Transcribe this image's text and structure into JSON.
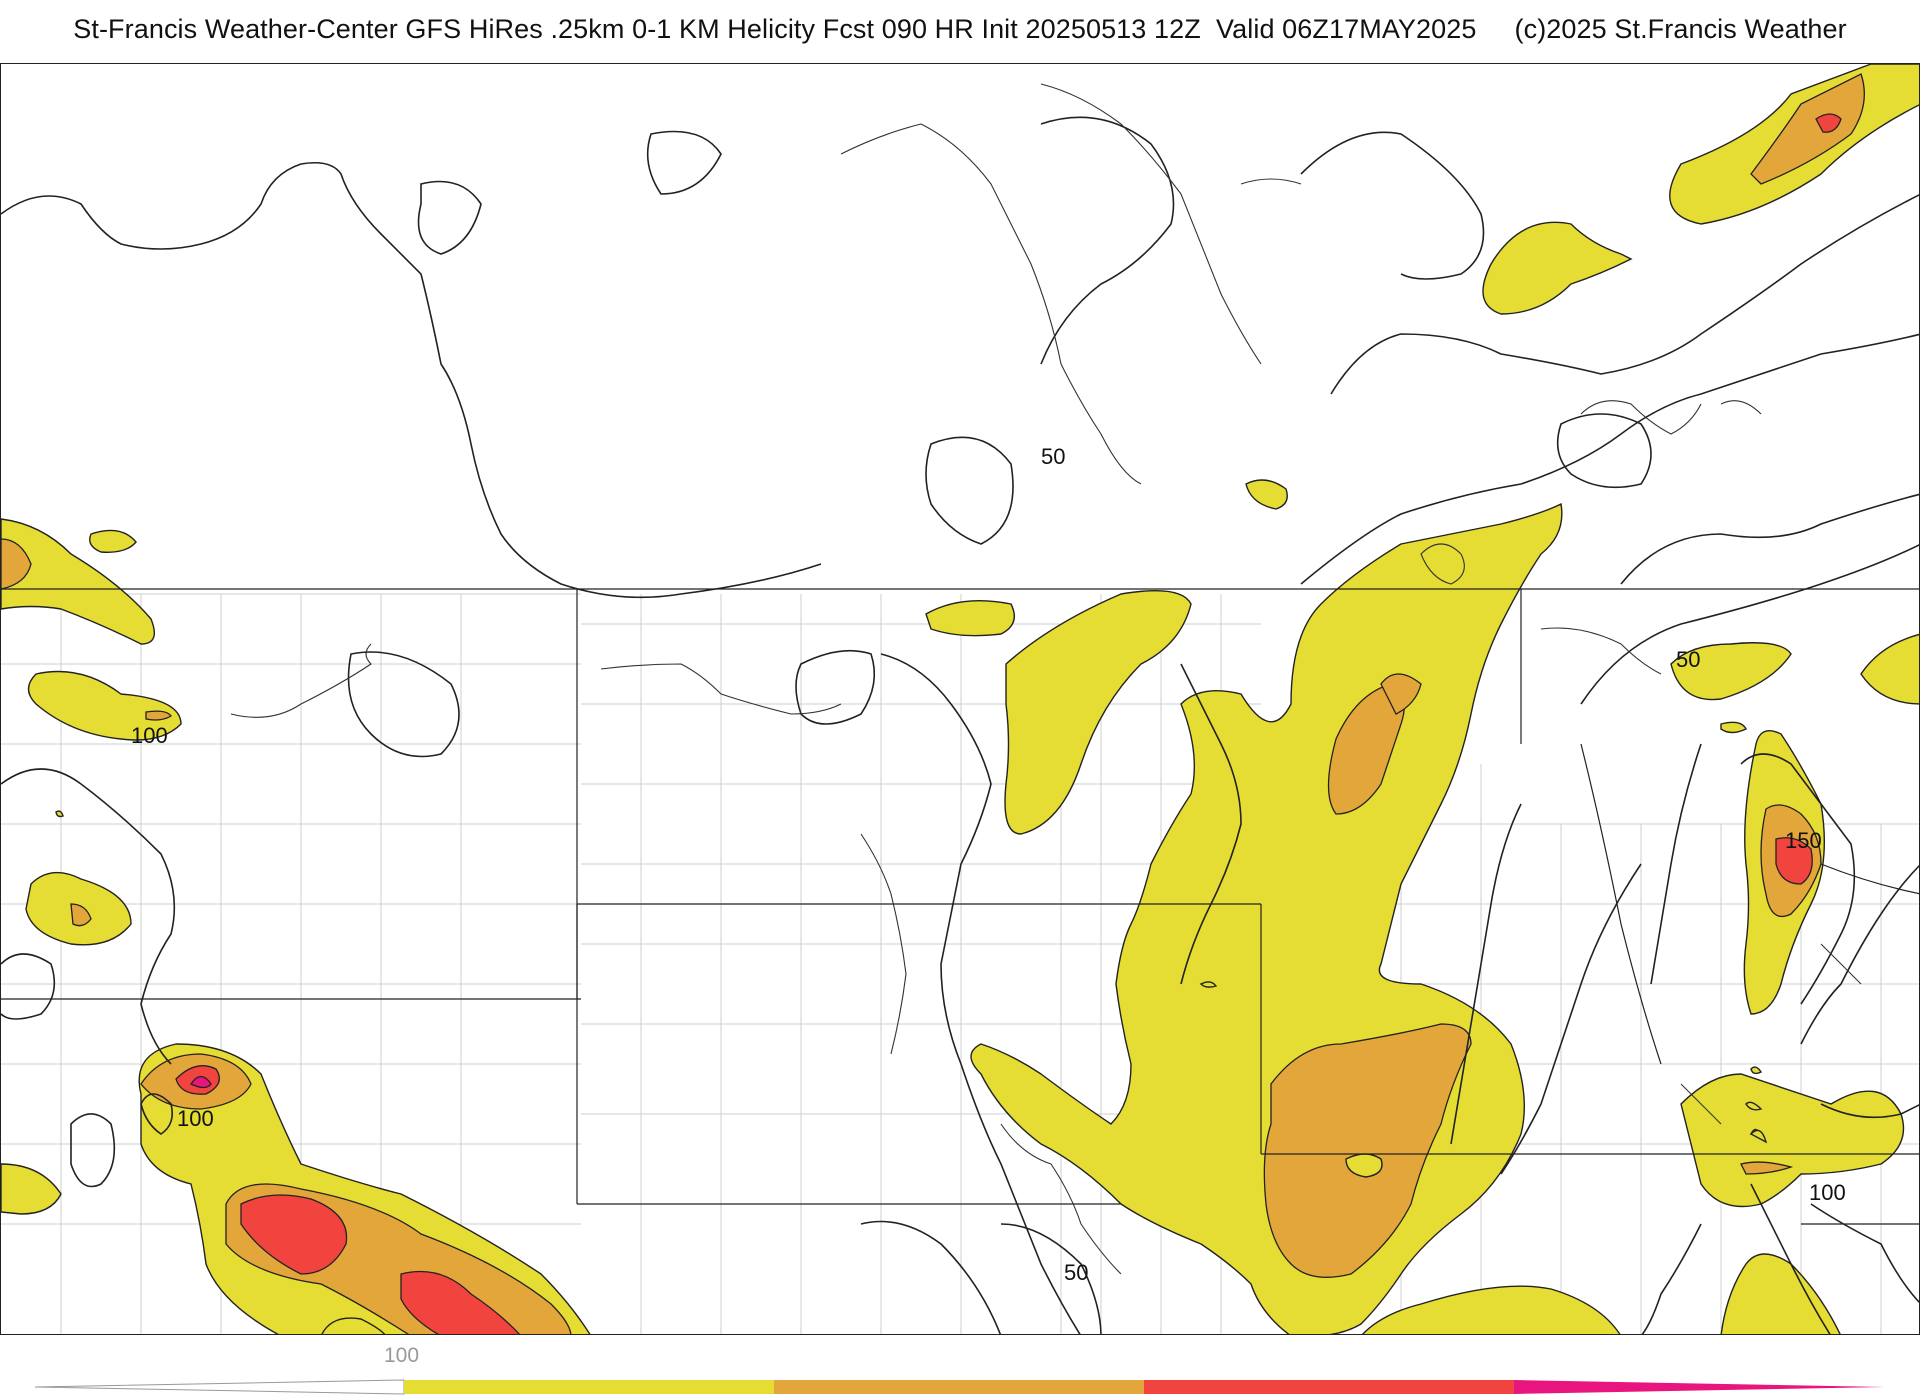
{
  "header": {
    "title": "St-Francis Weather-Center GFS HiRes .25km 0-1 KM Helicity Fcst 090 HR Init 20250513 12Z  Valid 06Z17MAY2025     (c)2025 St.Francis Weather"
  },
  "map": {
    "contour_labels": [
      "50",
      "50",
      "50",
      "100",
      "100",
      "150",
      "100"
    ]
  },
  "colorbar": {
    "tick_label": "100",
    "colors": {
      "yellow": "#e5dc34",
      "orange": "#e3a63a",
      "red": "#f2443f",
      "magenta": "#e8157e"
    }
  }
}
